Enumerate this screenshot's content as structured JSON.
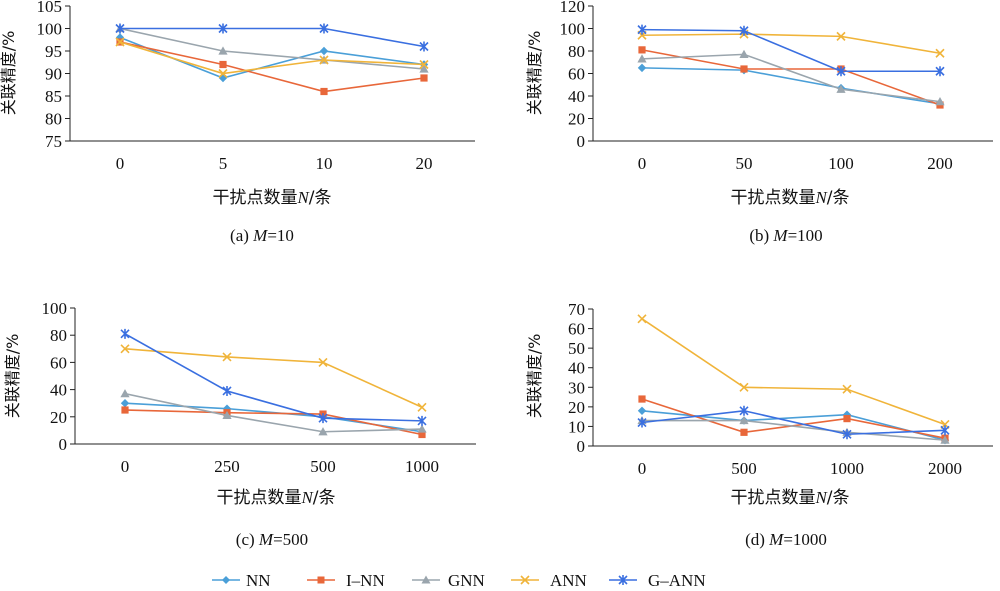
{
  "chart_data": [
    {
      "type": "line",
      "caption_prefix": "(a) ",
      "caption_italic": "M",
      "caption_suffix": "=10",
      "xlabel": "干扰点数量N/条",
      "ylabel": "关联精度/%",
      "categories": [
        "0",
        "5",
        "10",
        "20"
      ],
      "ylim": [
        75,
        105
      ],
      "yticks": [
        75,
        80,
        85,
        90,
        95,
        100,
        105
      ],
      "series": [
        {
          "name": "NN",
          "values": [
            98,
            89,
            95,
            92
          ]
        },
        {
          "name": "I–NN",
          "values": [
            97,
            92,
            86,
            89
          ]
        },
        {
          "name": "GNN",
          "values": [
            100,
            95,
            93,
            91
          ]
        },
        {
          "name": "ANN",
          "values": [
            97,
            90,
            93,
            92
          ]
        },
        {
          "name": "G–ANN",
          "values": [
            100,
            100,
            100,
            96
          ]
        }
      ]
    },
    {
      "type": "line",
      "caption_prefix": "(b) ",
      "caption_italic": "M",
      "caption_suffix": "=100",
      "xlabel": "干扰点数量N/条",
      "ylabel": "关联精度/%",
      "categories": [
        "0",
        "50",
        "100",
        "200"
      ],
      "ylim": [
        0,
        120
      ],
      "yticks": [
        0,
        20,
        40,
        60,
        80,
        100,
        120
      ],
      "series": [
        {
          "name": "NN",
          "values": [
            65,
            63,
            47,
            33
          ]
        },
        {
          "name": "I–NN",
          "values": [
            81,
            64,
            64,
            32
          ]
        },
        {
          "name": "GNN",
          "values": [
            73,
            77,
            46,
            35
          ]
        },
        {
          "name": "ANN",
          "values": [
            94,
            95,
            93,
            78
          ]
        },
        {
          "name": "G–ANN",
          "values": [
            99,
            98,
            62,
            62
          ]
        }
      ]
    },
    {
      "type": "line",
      "caption_prefix": "(c) ",
      "caption_italic": "M",
      "caption_suffix": "=500",
      "xlabel": "干扰点数量N/条",
      "ylabel": "关联精度/%",
      "categories": [
        "0",
        "250",
        "500",
        "1000"
      ],
      "ylim": [
        0,
        100
      ],
      "yticks": [
        0,
        20,
        40,
        60,
        80,
        100
      ],
      "series": [
        {
          "name": "NN",
          "values": [
            30,
            26,
            20,
            9
          ]
        },
        {
          "name": "I–NN",
          "values": [
            25,
            23,
            22,
            7
          ]
        },
        {
          "name": "GNN",
          "values": [
            37,
            21,
            9,
            11
          ]
        },
        {
          "name": "ANN",
          "values": [
            70,
            64,
            60,
            27
          ]
        },
        {
          "name": "G–ANN",
          "values": [
            81,
            39,
            19,
            17
          ]
        }
      ]
    },
    {
      "type": "line",
      "caption_prefix": "(d) ",
      "caption_italic": "M",
      "caption_suffix": "=1000",
      "xlabel": "干扰点数量N/条",
      "ylabel": "关联精度/%",
      "categories": [
        "0",
        "500",
        "1000",
        "2000"
      ],
      "ylim": [
        0,
        70
      ],
      "yticks": [
        0,
        10,
        20,
        30,
        40,
        50,
        60,
        70
      ],
      "series": [
        {
          "name": "NN",
          "values": [
            18,
            13,
            16,
            3
          ]
        },
        {
          "name": "I–NN",
          "values": [
            24,
            7,
            14,
            4
          ]
        },
        {
          "name": "GNN",
          "values": [
            13,
            13,
            7,
            3
          ]
        },
        {
          "name": "ANN",
          "values": [
            65,
            30,
            29,
            11
          ]
        },
        {
          "name": "G–ANN",
          "values": [
            12,
            18,
            6,
            8
          ]
        }
      ]
    }
  ],
  "legend": [
    {
      "name": "NN",
      "color": "#4a9fd8",
      "marker": "diamond"
    },
    {
      "name": "I–NN",
      "color": "#e8673a",
      "marker": "square"
    },
    {
      "name": "GNN",
      "color": "#9aa5ad",
      "marker": "triangle"
    },
    {
      "name": "ANN",
      "color": "#f0b43a",
      "marker": "x"
    },
    {
      "name": "G–ANN",
      "color": "#3a6fe0",
      "marker": "star"
    }
  ]
}
